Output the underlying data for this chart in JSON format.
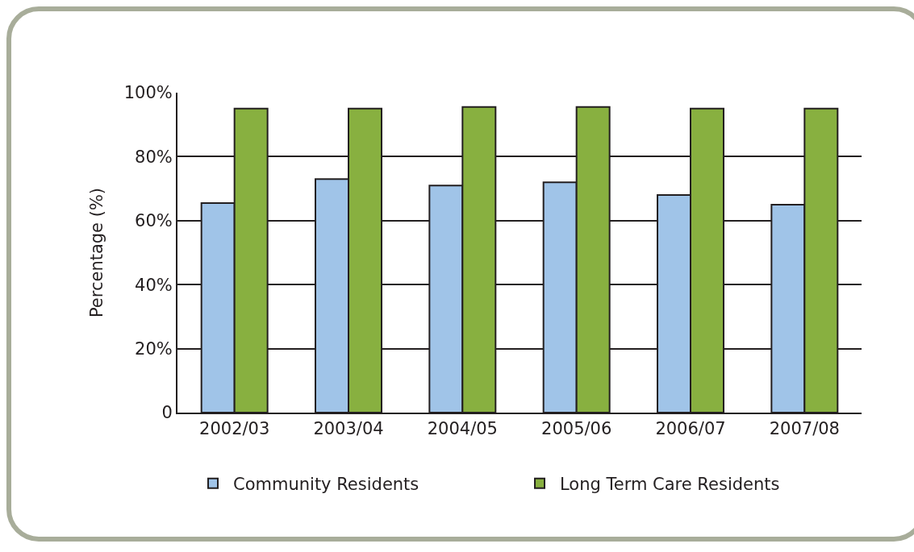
{
  "chart_data": {
    "type": "bar",
    "ylabel": "Percentage (%)",
    "categories": [
      "2002/03",
      "2003/04",
      "2004/05",
      "2005/06",
      "2006/07",
      "2007/08"
    ],
    "series": [
      {
        "name": "Community Residents",
        "color": "#a0c4e8",
        "values": [
          65.5,
          73,
          71,
          72,
          68,
          65
        ]
      },
      {
        "name": "Long Term Care Residents",
        "color": "#88b040",
        "values": [
          95,
          95,
          95.5,
          95.5,
          95,
          95
        ]
      }
    ],
    "ylim": [
      0,
      100
    ],
    "yticks": [
      0,
      {
        "value": 20,
        "label": "20%"
      },
      {
        "value": 40,
        "label": "40%"
      },
      {
        "value": 60,
        "label": "60%"
      },
      {
        "value": 80,
        "label": "80%"
      },
      {
        "value": 100,
        "label": "100%"
      }
    ],
    "grid": "y",
    "legend": "bottom"
  }
}
